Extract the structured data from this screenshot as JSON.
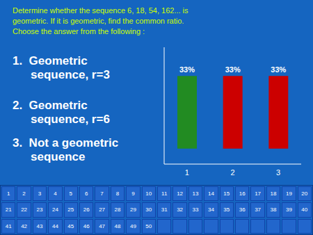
{
  "chart_data": {
    "type": "bar",
    "title": "Determine whether the sequence 6, 18, 54, 162... is\ngeometric. If it is geometric, find the common ratio.\nChoose the answer from the following :",
    "categories": [
      "1",
      "2",
      "3"
    ],
    "values": [
      33,
      33,
      33
    ],
    "value_labels": [
      "33%",
      "33%",
      "33%"
    ],
    "data_labels": true,
    "colors": [
      "#228B22",
      "#CC0000",
      "#CC0000"
    ],
    "ylim": [
      -7,
      46
    ],
    "yticks": [],
    "tick_labels": "x",
    "grid": false,
    "annotations": [
      "1.  Geometric",
      "sequence, r=3",
      "2.  Geometric",
      "sequence, r=6",
      "3.  Not a geometric",
      "sequence",
      "1",
      "2",
      "3",
      "4",
      "5",
      "6",
      "7",
      "8",
      "9",
      "10",
      "11",
      "12",
      "13",
      "14",
      "15",
      "16",
      "17",
      "18",
      "19",
      "20",
      "21",
      "22",
      "23",
      "24",
      "25",
      "26",
      "27",
      "28",
      "29",
      "30",
      "31",
      "32",
      "33",
      "34",
      "35",
      "36",
      "37",
      "38",
      "39",
      "40",
      "41",
      "42",
      "43",
      "44",
      "45",
      "46",
      "47",
      "48",
      "49",
      "50"
    ]
  }
}
